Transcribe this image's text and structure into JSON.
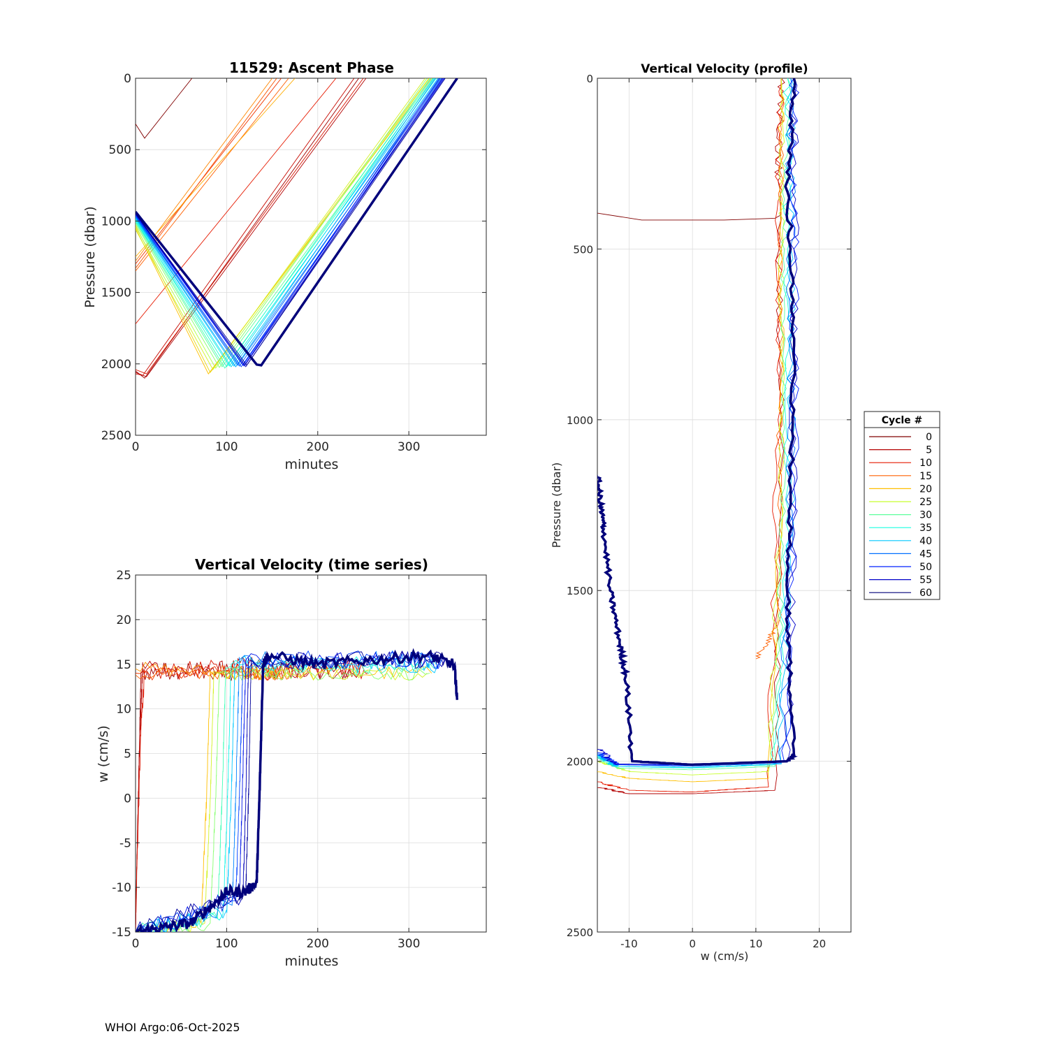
{
  "footer": "WHOI Argo:06-Oct-2025",
  "colors": {
    "cycle_0": "#800000",
    "cycle_5": "#b30000",
    "cycle_10": "#e61a00",
    "cycle_15": "#ff6000",
    "cycle_20": "#ffbf00",
    "cycle_25": "#c8ff2e",
    "cycle_30": "#5cff9c",
    "cycle_35": "#19ffe0",
    "cycle_40": "#00c8ff",
    "cycle_45": "#0070ff",
    "cycle_50": "#0020ff",
    "cycle_55": "#0000c8",
    "cycle_60": "#00007a"
  },
  "legend": {
    "title": "Cycle #",
    "entries": [
      "0",
      "5",
      "10",
      "15",
      "20",
      "25",
      "30",
      "35",
      "40",
      "45",
      "50",
      "55",
      "60"
    ]
  },
  "chart_data": [
    {
      "id": "ascent",
      "type": "line",
      "title": "11529: Ascent Phase",
      "xlabel": "minutes",
      "ylabel": "Pressure (dbar)",
      "xlim": [
        0,
        385
      ],
      "ylim": [
        2500,
        0
      ],
      "xticks": [
        "0",
        "100",
        "200",
        "300"
      ],
      "xtick_values": [
        0,
        100,
        200,
        300
      ],
      "yticks": [
        "0",
        "500",
        "1000",
        "1500",
        "2000",
        "2500"
      ],
      "ytick_values": [
        0,
        500,
        1000,
        1500,
        2000,
        2500
      ],
      "series": [
        {
          "cycle": 0,
          "x": [
            0,
            10,
            62
          ],
          "y": [
            320,
            420,
            0
          ]
        },
        {
          "cycle": 3,
          "x": [
            0,
            10,
            245
          ],
          "y": [
            2050,
            2100,
            0
          ]
        },
        {
          "cycle": 5,
          "x": [
            0,
            12,
            253
          ],
          "y": [
            2060,
            2090,
            0
          ]
        },
        {
          "cycle": 7,
          "x": [
            0,
            8,
            240
          ],
          "y": [
            2070,
            2080,
            0
          ]
        },
        {
          "cycle": 9,
          "x": [
            0,
            12,
            250
          ],
          "y": [
            2040,
            2070,
            0
          ]
        },
        {
          "cycle": 10,
          "x": [
            0,
            220
          ],
          "y": [
            1720,
            0
          ]
        },
        {
          "cycle": 12,
          "x": [
            0,
            160
          ],
          "y": [
            1300,
            0
          ]
        },
        {
          "cycle": 14,
          "x": [
            0,
            155
          ],
          "y": [
            1330,
            0
          ]
        },
        {
          "cycle": 15,
          "x": [
            0,
            168
          ],
          "y": [
            1350,
            0
          ]
        },
        {
          "cycle": 17,
          "x": [
            0,
            150
          ],
          "y": [
            1280,
            0
          ]
        },
        {
          "cycle": 19,
          "x": [
            0,
            175
          ],
          "y": [
            1250,
            0
          ]
        },
        {
          "cycle": 20,
          "x": [
            0,
            80,
            325
          ],
          "y": [
            1050,
            2070,
            0
          ]
        },
        {
          "cycle": 22,
          "x": [
            0,
            82,
            322
          ],
          "y": [
            1030,
            2060,
            0
          ]
        },
        {
          "cycle": 24,
          "x": [
            0,
            85,
            318
          ],
          "y": [
            1060,
            2040,
            0
          ]
        },
        {
          "cycle": 26,
          "x": [
            0,
            88,
            323
          ],
          "y": [
            1040,
            2030,
            0
          ]
        },
        {
          "cycle": 28,
          "x": [
            0,
            92,
            320
          ],
          "y": [
            1020,
            2025,
            0
          ]
        },
        {
          "cycle": 30,
          "x": [
            0,
            95,
            326
          ],
          "y": [
            1010,
            2020,
            0
          ]
        },
        {
          "cycle": 32,
          "x": [
            0,
            98,
            328
          ],
          "y": [
            1000,
            2030,
            0
          ]
        },
        {
          "cycle": 34,
          "x": [
            0,
            100,
            324
          ],
          "y": [
            990,
            2020,
            0
          ]
        },
        {
          "cycle": 36,
          "x": [
            0,
            103,
            330
          ],
          "y": [
            1000,
            2015,
            0
          ]
        },
        {
          "cycle": 38,
          "x": [
            0,
            105,
            327
          ],
          "y": [
            985,
            2020,
            0
          ]
        },
        {
          "cycle": 40,
          "x": [
            0,
            108,
            332
          ],
          "y": [
            980,
            2015,
            0
          ]
        },
        {
          "cycle": 42,
          "x": [
            0,
            110,
            329
          ],
          "y": [
            975,
            2020,
            0
          ]
        },
        {
          "cycle": 44,
          "x": [
            0,
            112,
            335
          ],
          "y": [
            970,
            2010,
            0
          ]
        },
        {
          "cycle": 46,
          "x": [
            0,
            114,
            333
          ],
          "y": [
            965,
            2015,
            0
          ]
        },
        {
          "cycle": 48,
          "x": [
            0,
            116,
            336
          ],
          "y": [
            960,
            2020,
            0
          ]
        },
        {
          "cycle": 50,
          "x": [
            0,
            118,
            338
          ],
          "y": [
            955,
            2010,
            0
          ]
        },
        {
          "cycle": 52,
          "x": [
            0,
            119,
            334
          ],
          "y": [
            950,
            2015,
            0
          ]
        },
        {
          "cycle": 54,
          "x": [
            0,
            120,
            339
          ],
          "y": [
            945,
            2010,
            0
          ]
        },
        {
          "cycle": 56,
          "x": [
            0,
            121,
            337
          ],
          "y": [
            950,
            2020,
            0
          ]
        },
        {
          "cycle": 58,
          "x": [
            0,
            122,
            340
          ],
          "y": [
            945,
            2010,
            0
          ]
        },
        {
          "cycle": 60,
          "x": [
            0,
            133,
            138,
            353
          ],
          "y": [
            935,
            2005,
            2010,
            0
          ],
          "bold": true
        }
      ]
    },
    {
      "id": "wtime",
      "type": "line",
      "title": "Vertical Velocity (time series)",
      "xlabel": "minutes",
      "ylabel": "w (cm/s)",
      "xlim": [
        0,
        385
      ],
      "ylim": [
        -15,
        25
      ],
      "xticks": [
        "0",
        "100",
        "200",
        "300"
      ],
      "xtick_values": [
        0,
        100,
        200,
        300
      ],
      "yticks": [
        "-15",
        "-10",
        "-5",
        "0",
        "5",
        "10",
        "15",
        "20",
        "25"
      ],
      "ytick_values": [
        -15,
        -10,
        -5,
        0,
        5,
        10,
        15,
        20,
        25
      ],
      "series": [
        {
          "cycle": 3,
          "x": [
            0,
            3,
            6,
            60,
            120,
            180,
            240
          ],
          "y": [
            -15,
            0,
            14,
            14.5,
            14,
            14.5,
            14
          ],
          "noise": 1.0
        },
        {
          "cycle": 5,
          "x": [
            0,
            4,
            8,
            70,
            130,
            190,
            250
          ],
          "y": [
            -15,
            5,
            15,
            14,
            15,
            14,
            14.5
          ],
          "noise": 1.0
        },
        {
          "cycle": 9,
          "x": [
            0,
            6,
            10,
            80,
            150,
            220,
            255
          ],
          "y": [
            -13,
            8,
            14,
            14.5,
            14,
            15,
            14
          ],
          "noise": 1.0
        },
        {
          "cycle": 12,
          "x": [
            0,
            110,
            160
          ],
          "y": [
            14,
            14,
            14
          ],
          "noise": 0.8
        },
        {
          "cycle": 15,
          "x": [
            0,
            120,
            170
          ],
          "y": [
            13.8,
            14.2,
            14
          ],
          "noise": 0.8
        },
        {
          "cycle": 18,
          "x": [
            0,
            130,
            175
          ],
          "y": [
            14.5,
            14,
            14.2
          ],
          "noise": 0.8
        },
        {
          "cycle": 20,
          "x": [
            0,
            72,
            78,
            82,
            200,
            325
          ],
          "y": [
            -15,
            -14,
            0,
            14,
            14,
            14
          ],
          "noise": 0.8
        },
        {
          "cycle": 24,
          "x": [
            0,
            76,
            82,
            86,
            200,
            320
          ],
          "y": [
            -15,
            -14,
            0,
            14,
            14,
            14
          ],
          "noise": 0.8
        },
        {
          "cycle": 28,
          "x": [
            0,
            82,
            88,
            92,
            210,
            323
          ],
          "y": [
            -15,
            -14,
            0,
            14,
            14,
            14
          ],
          "noise": 0.8
        },
        {
          "cycle": 32,
          "x": [
            0,
            90,
            95,
            99,
            220,
            328
          ],
          "y": [
            -15,
            -13.5,
            0,
            14.5,
            14.5,
            14.5
          ],
          "noise": 0.9
        },
        {
          "cycle": 36,
          "x": [
            0,
            96,
            101,
            105,
            230,
            330
          ],
          "y": [
            -15,
            -13,
            0,
            15,
            15,
            15
          ],
          "noise": 0.9
        },
        {
          "cycle": 40,
          "x": [
            0,
            100,
            105,
            109,
            240,
            332
          ],
          "y": [
            -15,
            -12.5,
            0,
            15,
            15,
            15
          ],
          "noise": 1.0
        },
        {
          "cycle": 44,
          "x": [
            0,
            106,
            110,
            114,
            250,
            335
          ],
          "y": [
            -15,
            -12,
            0,
            15.5,
            15.5,
            15.5
          ],
          "noise": 1.0
        },
        {
          "cycle": 48,
          "x": [
            0,
            110,
            114,
            118,
            250,
            336
          ],
          "y": [
            -15,
            -11.5,
            0,
            15.5,
            15.5,
            15.5
          ],
          "noise": 1.0
        },
        {
          "cycle": 52,
          "x": [
            0,
            114,
            117,
            121,
            260,
            338
          ],
          "y": [
            -15,
            -11,
            0,
            15.5,
            15.5,
            15.5
          ],
          "noise": 1.0
        },
        {
          "cycle": 56,
          "x": [
            0,
            118,
            121,
            124,
            270,
            339
          ],
          "y": [
            -15,
            -11,
            0,
            15.5,
            15.5,
            15.5
          ],
          "noise": 1.0
        },
        {
          "cycle": 58,
          "x": [
            0,
            121,
            124,
            127,
            280,
            340
          ],
          "y": [
            -15,
            -10.5,
            0,
            15.5,
            15.5,
            15.5
          ],
          "noise": 1.0
        },
        {
          "cycle": 60,
          "x": [
            2,
            30,
            60,
            90,
            100,
            120,
            133,
            136,
            140,
            145,
            200,
            260,
            320,
            350,
            353
          ],
          "y": [
            -15,
            -14.5,
            -14,
            -11.5,
            -10.5,
            -10.5,
            -9.5,
            0,
            15,
            16,
            15,
            15.5,
            16,
            15,
            11
          ],
          "noise": 0.6,
          "bold": true
        }
      ]
    },
    {
      "id": "wprofile",
      "type": "line",
      "title": "Vertical Velocity (profile)",
      "xlabel": "w (cm/s)",
      "ylabel": "Pressure (dbar)",
      "xlim": [
        -15,
        25
      ],
      "ylim": [
        2500,
        0
      ],
      "xticks": [
        "-10",
        "0",
        "10",
        "20"
      ],
      "xtick_values": [
        -10,
        0,
        10,
        20
      ],
      "yticks": [
        "0",
        "500",
        "1000",
        "1500",
        "2000",
        "2500"
      ],
      "ytick_values": [
        0,
        500,
        1000,
        1500,
        2000,
        2500
      ],
      "series": [
        {
          "cycle": 0,
          "x": [
            -15,
            -8,
            5,
            13,
            14
          ],
          "y": [
            395,
            415,
            415,
            410,
            400
          ],
          "noise": 0
        },
        {
          "cycle": 5,
          "x": [
            -15,
            -10,
            0,
            13,
            14,
            13.5,
            14
          ],
          "y": [
            2075,
            2095,
            2095,
            2085,
            1000,
            300,
            0
          ],
          "noise": 0.6
        },
        {
          "cycle": 10,
          "x": [
            -15,
            -10,
            0,
            12,
            13.5,
            13.5,
            14
          ],
          "y": [
            2060,
            2085,
            2090,
            2075,
            1000,
            300,
            0
          ],
          "noise": 0.6
        },
        {
          "cycle": 15,
          "x": [
            10,
            13.5,
            13.8,
            14
          ],
          "y": [
            1700,
            1600,
            900,
            0
          ],
          "noise": 0.5
        },
        {
          "cycle": 20,
          "x": [
            -15,
            -10,
            0,
            12,
            14,
            14,
            14
          ],
          "y": [
            2030,
            2050,
            2060,
            2050,
            1200,
            500,
            0
          ],
          "noise": 0.5
        },
        {
          "cycle": 25,
          "x": [
            -15,
            -10,
            0,
            12,
            14,
            14,
            14
          ],
          "y": [
            2000,
            2030,
            2040,
            2030,
            1200,
            500,
            0
          ],
          "noise": 0.5
        },
        {
          "cycle": 30,
          "x": [
            -15,
            -12,
            0,
            13,
            14.5,
            14.5,
            15
          ],
          "y": [
            1990,
            2020,
            2025,
            2015,
            1200,
            500,
            0
          ],
          "noise": 0.6
        },
        {
          "cycle": 35,
          "x": [
            -15,
            -12,
            0,
            13,
            15,
            15,
            15
          ],
          "y": [
            1985,
            2015,
            2020,
            2010,
            1200,
            500,
            0
          ],
          "noise": 0.7
        },
        {
          "cycle": 40,
          "x": [
            -15,
            -12,
            0,
            14,
            15.5,
            15.5,
            15.5
          ],
          "y": [
            1980,
            2015,
            2018,
            2008,
            1200,
            500,
            0
          ],
          "noise": 0.8
        },
        {
          "cycle": 45,
          "x": [
            -15,
            -12,
            0,
            14,
            15.5,
            15.5,
            15.5
          ],
          "y": [
            1975,
            2010,
            2015,
            2005,
            1200,
            500,
            0
          ],
          "noise": 0.8
        },
        {
          "cycle": 50,
          "x": [
            -15,
            -12,
            0,
            14.5,
            16,
            16,
            16
          ],
          "y": [
            1970,
            2010,
            2012,
            2002,
            1200,
            500,
            0
          ],
          "noise": 0.8
        },
        {
          "cycle": 55,
          "x": [
            -15,
            -12,
            0,
            15,
            16,
            16,
            16
          ],
          "y": [
            1965,
            2008,
            2010,
            2000,
            1200,
            500,
            0
          ],
          "noise": 0.8
        },
        {
          "cycle": 60,
          "x": [
            -15,
            -14.5,
            -14,
            -13,
            -11.5,
            -10.5,
            -9.5,
            0,
            15,
            16,
            15,
            15.5,
            16,
            15,
            16
          ],
          "y": [
            1160,
            1250,
            1320,
            1500,
            1650,
            1750,
            2000,
            2010,
            2000,
            1980,
            1600,
            1200,
            700,
            300,
            0
          ],
          "noise": 0.4,
          "bold": true
        }
      ]
    }
  ]
}
